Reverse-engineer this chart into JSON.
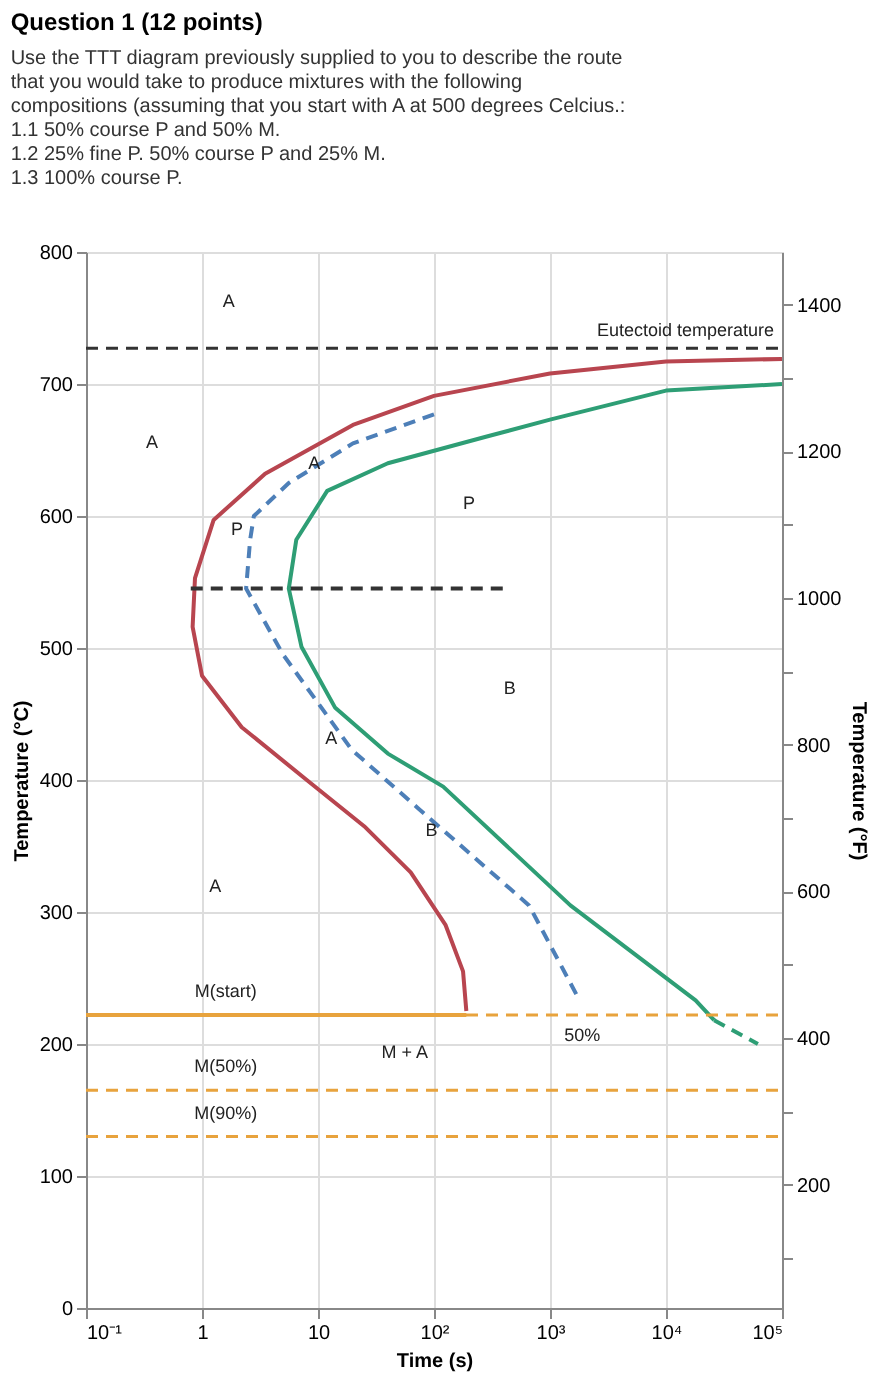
{
  "chart_data": {
    "type": "line",
    "title": "Question 1 (12 points)",
    "subtitle": "Use the TTT diagram previously supplied to you to describe the route that you would take to produce mixtures with the following compositions (assuming that you start with A at 500 degrees Celcius.:",
    "xlabel": "Time (s)",
    "ylabel": "Temperature (°C)",
    "y2label": "Temperature (°F)",
    "log": "x",
    "grid": true,
    "marker": "none",
    "xlim": [
      0.1,
      100000
    ],
    "xticks": [
      {
        "value": 0.1,
        "label": "10⁻¹"
      },
      1,
      10,
      {
        "value": 100,
        "label": "10²"
      },
      {
        "value": 1000,
        "label": "10³"
      },
      {
        "value": 10000,
        "label": "10⁴"
      },
      {
        "value": 100000,
        "label": "10⁵"
      }
    ],
    "ylim": [
      0,
      800
    ],
    "yticks": [
      0,
      100,
      200,
      300,
      400,
      500,
      600,
      700,
      800
    ],
    "y2lim": [
      32,
      1472
    ],
    "y2ticks": [
      {
        "value": 100,
        "label": null
      },
      200,
      {
        "value": 300,
        "label": null
      },
      400,
      {
        "value": 500,
        "label": null
      },
      600,
      {
        "value": 700,
        "label": null
      },
      800,
      {
        "value": 900,
        "label": null
      },
      1000,
      {
        "value": 1100,
        "label": null
      },
      1200,
      {
        "value": 1300,
        "label": null
      },
      1400
    ],
    "series": [
      {
        "color": "#b8454f",
        "line_style": "solid",
        "x": [
          100000,
          10000,
          1000,
          100,
          20,
          3.5,
          1.26,
          0.87,
          0.83,
          1.0,
          2.2,
          8,
          25,
          63,
          126,
          178,
          190
        ],
        "values": [
          719,
          717,
          708,
          691,
          669,
          632,
          597,
          553,
          516,
          479,
          440,
          400,
          365,
          330,
          290,
          255,
          225
        ]
      },
      {
        "color": "#2e9e75",
        "line_style": "solid",
        "x": [
          100000,
          10000,
          1000,
          280,
          40,
          12,
          6.5,
          5.6,
          7.2,
          14,
          40,
          120,
          1500,
          18000,
          26000
        ],
        "values": [
          700,
          695,
          673,
          660,
          640,
          619,
          582,
          545,
          501,
          455,
          420,
          395,
          305,
          233,
          218
        ]
      },
      {
        "color": "#2e9e75",
        "line_style": "dashed",
        "x": [
          26000,
          62000
        ],
        "values": [
          218,
          200
        ]
      },
      {
        "color": "#4d7fb8",
        "line_style": "dashed",
        "x": [
          100,
          20,
          5.6,
          2.8,
          2.6,
          2.4,
          5,
          19.5,
          72,
          660,
          1800
        ],
        "values": [
          677,
          655,
          625,
          600,
          582,
          545,
          495,
          423,
          379,
          305,
          233
        ]
      },
      {
        "color": "#333333",
        "line_style": "dashed",
        "x": [
          0.8,
          400
        ],
        "values": [
          545,
          545
        ]
      },
      {
        "color": "#e8a33d",
        "line_style": "solid",
        "x": [
          0.1,
          190
        ],
        "values": [
          222,
          222
        ]
      }
    ],
    "ref_lines": [
      {
        "axis": "y",
        "value": 727,
        "label": "Eutectoid temperature",
        "color": "#333333",
        "line_style": "dashed"
      },
      {
        "axis": "y",
        "value": 222,
        "label": null,
        "color": "#e8a33d",
        "line_style": "dashed"
      },
      {
        "axis": "y",
        "value": 165,
        "label": null,
        "color": "#e8a33d",
        "line_style": "dashed"
      },
      {
        "axis": "y",
        "value": 130,
        "label": null,
        "color": "#e8a33d",
        "line_style": "dashed"
      }
    ],
    "annotations": [
      "1.1 50% course P and 50% M.",
      "1.2 25% fine P. 50% course P and 25% M.",
      "1.3 100% course P.",
      "A",
      "A",
      "A",
      "P",
      "B",
      "P",
      "A",
      "A",
      "B",
      "M(start)",
      "M + A",
      "M(50%)",
      "M(90%)",
      "50%"
    ]
  }
}
